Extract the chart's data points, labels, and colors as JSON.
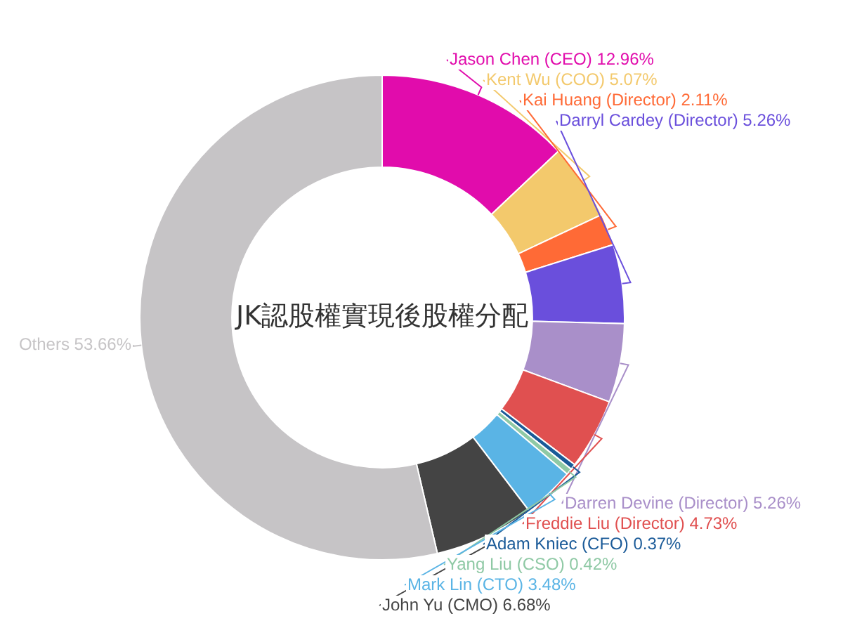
{
  "chart_data": {
    "type": "donut",
    "title": "JK認股權實現後股權分配",
    "categories": [
      "Jason Chen (CEO)",
      "Kent Wu (COO)",
      "Kai Huang (Director)",
      "Darryl Cardey (Director)",
      "Darren Devine (Director)",
      "Freddie Liu (Director)",
      "Adam Kniec (CFO)",
      "Yang Liu (CSO)",
      "Mark Lin (CTO)",
      "John Yu (CMO)",
      "Others"
    ],
    "values": [
      12.96,
      5.07,
      2.11,
      5.26,
      5.26,
      4.73,
      0.37,
      0.42,
      3.48,
      6.68,
      53.66
    ],
    "value_labels": [
      "12.96%",
      "5.07%",
      "2.11%",
      "5.26%",
      "5.26%",
      "4.73%",
      "0.37%",
      "0.42%",
      "3.48%",
      "6.68%",
      "53.66%"
    ],
    "colors": [
      "#e10cac",
      "#f3c96c",
      "#ff6a36",
      "#6a4fdc",
      "#a98fc9",
      "#e05050",
      "#1a5a98",
      "#8fc9a5",
      "#5ab4e5",
      "#444444",
      "#c6c4c6"
    ],
    "legend": false
  }
}
